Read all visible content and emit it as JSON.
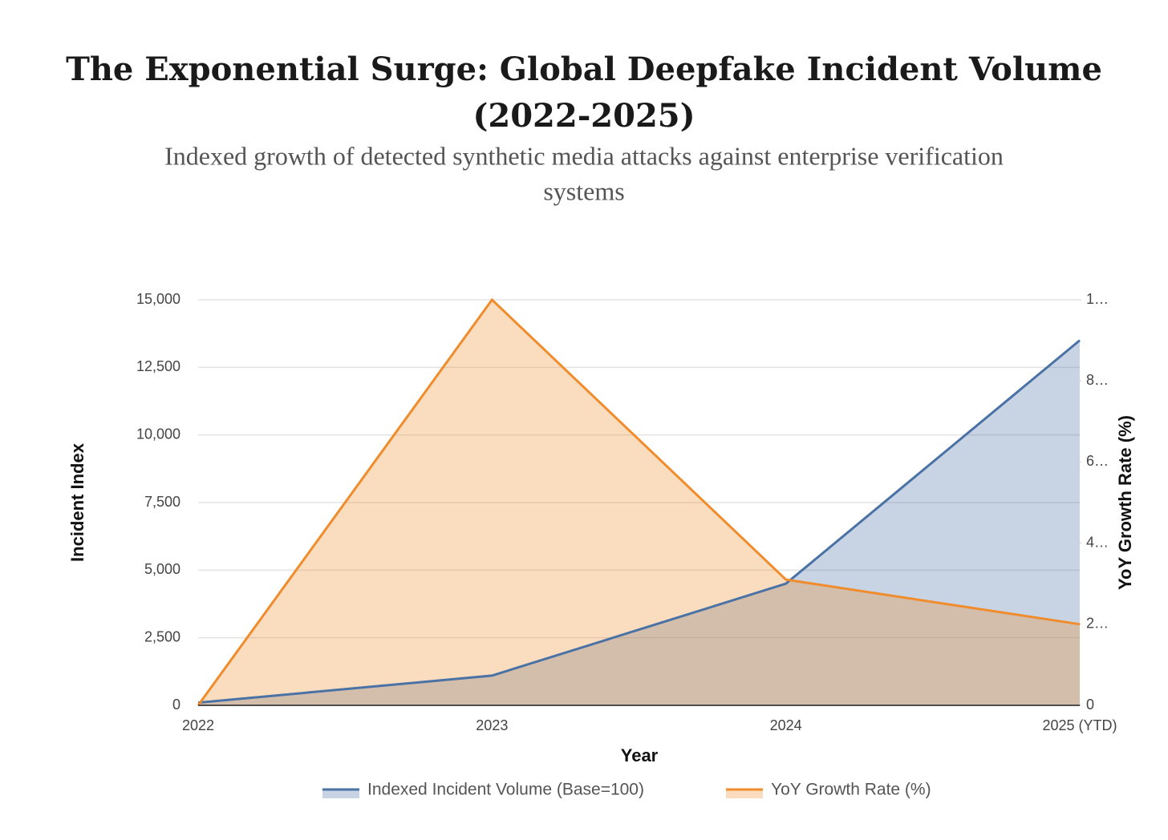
{
  "chart_data": {
    "type": "area",
    "title": "The Exponential Surge: Global Deepfake Incident Volume",
    "title_line2": "(2022-2025)",
    "subtitle": "Indexed growth of detected synthetic media attacks against enterprise verification",
    "subtitle_line2": "systems",
    "x_label": "Year",
    "y_label": "Incident Index",
    "y2_label": "YoY Growth Rate (%)",
    "categories": [
      "2022",
      "2023",
      "2024",
      "2025 (YTD)"
    ],
    "series": [
      {
        "name": "Indexed Incident Volume (Base=100)",
        "color": "#4a72a5",
        "values": [
          100,
          1100,
          4500,
          13500
        ]
      },
      {
        "name": "YoY Growth Rate (%)",
        "color": "#f08c2c",
        "axis": "y2",
        "values": [
          0,
          1000,
          310,
          200
        ]
      }
    ],
    "ylim": [
      0,
      15000
    ],
    "yticks": [
      0,
      {
        "value": 2500,
        "label": "2,500"
      },
      {
        "value": 5000,
        "label": "5,000"
      },
      {
        "value": 7500,
        "label": "7,500"
      },
      {
        "value": 10000,
        "label": "10,000"
      },
      {
        "value": 12500,
        "label": "12,500"
      },
      {
        "value": 15000,
        "label": "15,000"
      }
    ],
    "y2lim": [
      0,
      1000
    ],
    "y2ticks": [
      0,
      {
        "value": 200,
        "label": "2…"
      },
      {
        "value": 400,
        "label": "4…"
      },
      {
        "value": 600,
        "label": "6…"
      },
      {
        "value": 800,
        "label": "8…"
      },
      {
        "value": 1000,
        "label": "1…"
      }
    ],
    "grid": true
  }
}
